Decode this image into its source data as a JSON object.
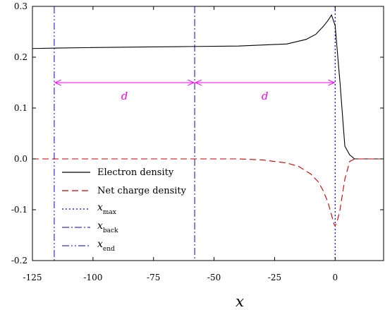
{
  "chart_data": {
    "type": "line",
    "xlabel": "x",
    "ylabel": "",
    "xlim": [
      -125,
      20
    ],
    "ylim": [
      -0.2,
      0.3
    ],
    "x_ticks": [
      -125,
      -100,
      -75,
      -50,
      -25,
      0
    ],
    "x_tick_labels": [
      "-125",
      "-100",
      "-75",
      "-50",
      "-25",
      "0"
    ],
    "y_ticks": [
      -0.2,
      -0.1,
      0.0,
      0.1,
      0.2,
      0.3
    ],
    "y_tick_labels": [
      "-0.2",
      "-0.1",
      "0.0",
      "0.1",
      "0.2",
      "0.3"
    ],
    "grid": false,
    "legend_position": "lower-left",
    "series": [
      {
        "name": "Electron density",
        "style": "solid",
        "color": "#000000",
        "x": [
          -125,
          -115,
          -100,
          -80,
          -60,
          -40,
          -20,
          -12,
          -8,
          -5,
          -3,
          -1.5,
          0,
          2,
          4,
          6,
          8,
          20
        ],
        "values": [
          0.217,
          0.218,
          0.219,
          0.22,
          0.221,
          0.222,
          0.226,
          0.235,
          0.245,
          0.26,
          0.272,
          0.283,
          0.262,
          0.15,
          0.025,
          0.008,
          0.0,
          0.0
        ]
      },
      {
        "name": "Net charge density",
        "style": "dashed",
        "color": "#cc0000",
        "x": [
          -125,
          -40,
          -30,
          -20,
          -15,
          -10,
          -7,
          -5,
          -3,
          -1.5,
          -0.5,
          0,
          1,
          2,
          3,
          4,
          6,
          8,
          20
        ],
        "values": [
          0.0,
          0.0,
          -0.002,
          -0.008,
          -0.015,
          -0.03,
          -0.045,
          -0.062,
          -0.085,
          -0.11,
          -0.128,
          -0.132,
          -0.12,
          -0.1,
          -0.07,
          -0.04,
          -0.005,
          0.0,
          0.0
        ]
      }
    ],
    "vertical_lines": [
      {
        "name": "x_max",
        "label": "x",
        "subscript": "max",
        "x": 0,
        "style": "dotted",
        "color": "#0000dd"
      },
      {
        "name": "x_back",
        "label": "x",
        "subscript": "back",
        "x": -58,
        "style": "dashdot",
        "color": "#3333cc"
      },
      {
        "name": "x_end",
        "label": "x",
        "subscript": "end",
        "x": -116,
        "style": "dashdotdot",
        "color": "#3333cc"
      }
    ],
    "annotations": [
      {
        "text": "d",
        "from": -116,
        "to": -58,
        "y": 0.15,
        "color": "#ff00ff"
      },
      {
        "text": "d",
        "from": -58,
        "to": 0,
        "y": 0.15,
        "color": "#ff00ff"
      }
    ]
  }
}
